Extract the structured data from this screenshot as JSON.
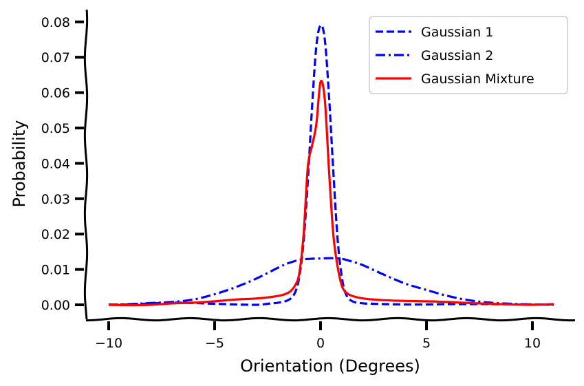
{
  "chart_data": {
    "type": "line",
    "title": "",
    "xlabel": "Orientation (Degrees)",
    "ylabel": "Probability",
    "xlim": [
      -11,
      12
    ],
    "ylim": [
      -0.004,
      0.0835
    ],
    "xticks": [
      -10,
      -5,
      0,
      5,
      10
    ],
    "xtick_labels": [
      "−10",
      "−5",
      "0",
      "5",
      "10"
    ],
    "yticks": [
      0.0,
      0.01,
      0.02,
      0.03,
      0.04,
      0.05,
      0.06,
      0.07,
      0.08
    ],
    "ytick_labels": [
      "0.00",
      "0.01",
      "0.02",
      "0.03",
      "0.04",
      "0.05",
      "0.06",
      "0.07",
      "0.08"
    ],
    "grid": false,
    "legend_position": "top-right",
    "series": [
      {
        "name": "Gaussian 1",
        "color": "#0000ff",
        "style": "dashed",
        "x": [
          -10,
          -9,
          -8,
          -7,
          -6,
          -5,
          -4,
          -3,
          -2.5,
          -2,
          -1.5,
          -1.2,
          -1,
          -0.8,
          -0.6,
          -0.4,
          -0.2,
          0,
          0.2,
          0.4,
          0.6,
          0.8,
          1,
          1.2,
          1.5,
          2,
          2.5,
          3,
          4,
          5,
          6,
          7,
          8,
          9,
          10,
          11
        ],
        "y": [
          0.0001,
          0.0001,
          0.0004,
          0.0006,
          0.0005,
          0.0003,
          0.0001,
          0.0,
          0.0003,
          0.0006,
          0.0014,
          0.0035,
          0.008,
          0.018,
          0.035,
          0.056,
          0.073,
          0.079,
          0.075,
          0.059,
          0.038,
          0.019,
          0.008,
          0.003,
          0.001,
          0.0004,
          0.0003,
          0.0002,
          0.0001,
          0.0001,
          0.0002,
          0.0002,
          0.0002,
          0.0001,
          0.0001,
          0.0001
        ]
      },
      {
        "name": "Gaussian 2",
        "color": "#0000ff",
        "style": "dashdot",
        "x": [
          -10,
          -9,
          -8,
          -7,
          -6,
          -5,
          -4,
          -3,
          -2,
          -1.5,
          -1,
          -0.5,
          0,
          0.5,
          1,
          1.5,
          2,
          3,
          4,
          5,
          6,
          7,
          8,
          9,
          10,
          11
        ],
        "y": [
          0.0,
          0.0002,
          0.0005,
          0.0008,
          0.0015,
          0.003,
          0.005,
          0.0075,
          0.0105,
          0.0118,
          0.0127,
          0.013,
          0.0131,
          0.0132,
          0.013,
          0.0122,
          0.0112,
          0.0085,
          0.006,
          0.0042,
          0.0025,
          0.0013,
          0.0006,
          0.0003,
          0.0001,
          0.0
        ]
      },
      {
        "name": "Gaussian Mixture",
        "color": "#ff0000",
        "style": "solid",
        "x": [
          -10,
          -9,
          -8,
          -7,
          -6,
          -5,
          -4,
          -3,
          -2,
          -1.5,
          -1.2,
          -1,
          -0.8,
          -0.6,
          -0.4,
          -0.2,
          0,
          0.2,
          0.4,
          0.6,
          0.8,
          1,
          1.2,
          1.5,
          2,
          2.5,
          3,
          4,
          5,
          6,
          7,
          8,
          9,
          10,
          11
        ],
        "y": [
          0.0,
          -0.0001,
          0.0,
          0.0004,
          0.0006,
          0.001,
          0.0015,
          0.0018,
          0.0025,
          0.0035,
          0.0055,
          0.009,
          0.02,
          0.039,
          0.045,
          0.051,
          0.063,
          0.058,
          0.038,
          0.02,
          0.011,
          0.0055,
          0.0035,
          0.0025,
          0.0018,
          0.0015,
          0.0013,
          0.0011,
          0.001,
          0.0008,
          0.0005,
          0.0003,
          0.0001,
          0.0,
          0.0002
        ]
      }
    ]
  }
}
